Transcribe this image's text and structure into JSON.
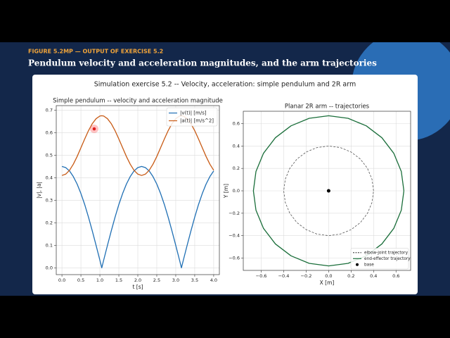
{
  "header": {
    "kicker": "FIGURE 5.2MP — OUTPUT OF EXERCISE 5.2",
    "title": "Pendulum velocity and acceleration magnitudes, and the arm trajectories"
  },
  "figure": {
    "title": "Simulation exercise 5.2 -- Velocity, acceleration: simple pendulum and 2R arm"
  },
  "chart_data": [
    {
      "type": "line",
      "title": "Simple pendulum -- velocity and acceleration magnitude",
      "x_label": "t  [s]",
      "y_label": "|v|, |a|",
      "x": [
        0,
        0.1,
        0.2,
        0.3,
        0.4,
        0.5,
        0.6,
        0.7,
        0.8,
        0.9,
        1.0,
        1.05,
        1.1,
        1.2,
        1.3,
        1.4,
        1.5,
        1.6,
        1.7,
        1.8,
        1.9,
        2.0,
        2.1,
        2.2,
        2.3,
        2.4,
        2.5,
        2.6,
        2.7,
        2.8,
        2.9,
        3.0,
        3.1,
        3.15,
        3.2,
        3.3,
        3.4,
        3.5,
        3.6,
        3.7,
        3.8,
        3.9,
        4.0
      ],
      "series": [
        {
          "name": "|v(t)|  [m/s]",
          "color": "#1f6fb4",
          "style": "solid",
          "values": [
            0.45,
            0.445,
            0.43,
            0.405,
            0.372,
            0.33,
            0.281,
            0.225,
            0.164,
            0.1,
            0.034,
            0,
            0.034,
            0.1,
            0.164,
            0.225,
            0.281,
            0.33,
            0.372,
            0.405,
            0.43,
            0.445,
            0.45,
            0.445,
            0.43,
            0.405,
            0.372,
            0.33,
            0.281,
            0.225,
            0.164,
            0.1,
            0.034,
            0,
            0.034,
            0.1,
            0.164,
            0.225,
            0.281,
            0.33,
            0.372,
            0.405,
            0.43
          ]
        },
        {
          "name": "|a(t)|  [m/s^2]",
          "color": "#c85a14",
          "style": "solid",
          "values": [
            0.41,
            0.416,
            0.433,
            0.46,
            0.494,
            0.533,
            0.572,
            0.609,
            0.64,
            0.662,
            0.674,
            0.675,
            0.674,
            0.662,
            0.64,
            0.609,
            0.572,
            0.533,
            0.494,
            0.46,
            0.433,
            0.416,
            0.41,
            0.416,
            0.433,
            0.46,
            0.494,
            0.533,
            0.572,
            0.609,
            0.64,
            0.662,
            0.674,
            0.675,
            0.674,
            0.662,
            0.64,
            0.609,
            0.572,
            0.533,
            0.494,
            0.46,
            0.433
          ]
        }
      ],
      "xlim": [
        -0.15,
        4.15
      ],
      "ylim": [
        -0.03,
        0.72
      ],
      "xticks": [
        {
          "value": 0,
          "label": "0.0"
        },
        0.5,
        {
          "value": 1,
          "label": "1.0"
        },
        1.5,
        {
          "value": 2,
          "label": "2.0"
        },
        2.5,
        {
          "value": 3,
          "label": "3.0"
        },
        3.5,
        {
          "value": 4,
          "label": "4.0"
        }
      ],
      "yticks": [
        {
          "value": 0,
          "label": "0.0"
        },
        0.1,
        0.2,
        0.3,
        0.4,
        0.5,
        0.6,
        0.7
      ],
      "grid": true,
      "legend": "upper right"
    },
    {
      "type": "line",
      "title": "Planar 2R arm -- trajectories",
      "x_label": "X [m]",
      "y_label": "Y [m]",
      "series": [
        {
          "name": "elbow-joint trajectory",
          "color": "#555555",
          "style": "dashed",
          "x": [
            0.4,
            0.386,
            0.346,
            0.283,
            0.2,
            0.104,
            0,
            -0.104,
            -0.2,
            -0.283,
            -0.346,
            -0.386,
            -0.4,
            -0.386,
            -0.346,
            -0.283,
            -0.2,
            -0.104,
            0,
            0.104,
            0.2,
            0.283,
            0.346,
            0.386,
            0.4
          ],
          "values": [
            0,
            0.104,
            0.2,
            0.283,
            0.346,
            0.386,
            0.4,
            0.386,
            0.346,
            0.283,
            0.2,
            0.104,
            0,
            -0.104,
            -0.2,
            -0.283,
            -0.346,
            -0.386,
            -0.4,
            -0.386,
            -0.346,
            -0.283,
            -0.2,
            -0.104,
            0
          ]
        },
        {
          "name": "end-effector trajectory",
          "color": "#1a6e3a",
          "style": "solid",
          "x": [
            0.67,
            0.647,
            0.58,
            0.474,
            0.335,
            0.173,
            0,
            -0.173,
            -0.335,
            -0.474,
            -0.58,
            -0.647,
            -0.67,
            -0.647,
            -0.58,
            -0.474,
            -0.335,
            -0.173,
            0,
            0.173,
            0.335,
            0.474,
            0.58,
            0.647,
            0.67
          ],
          "values": [
            0,
            0.173,
            0.335,
            0.474,
            0.58,
            0.647,
            0.67,
            0.647,
            0.58,
            0.474,
            0.335,
            0.173,
            0,
            -0.173,
            -0.335,
            -0.474,
            -0.58,
            -0.647,
            -0.67,
            -0.647,
            -0.58,
            -0.474,
            -0.335,
            -0.173,
            0
          ]
        },
        {
          "name": "base",
          "color": "#000000",
          "style": "point",
          "x": [
            0
          ],
          "values": [
            0
          ]
        }
      ],
      "xlim": [
        -0.76,
        0.73
      ],
      "ylim": [
        -0.71,
        0.71
      ],
      "xticks": [
        {
          "value": -0.6,
          "label": "−0.6"
        },
        {
          "value": -0.4,
          "label": "−0.4"
        },
        {
          "value": -0.2,
          "label": "−0.2"
        },
        {
          "value": 0,
          "label": "0.0"
        },
        0.2,
        0.4,
        0.6
      ],
      "yticks": [
        {
          "value": -0.6,
          "label": "−0.6"
        },
        {
          "value": -0.4,
          "label": "−0.4"
        },
        {
          "value": -0.2,
          "label": "−0.2"
        },
        {
          "value": 0,
          "label": "0.0"
        },
        0.2,
        0.4,
        0.6
      ],
      "grid": true,
      "legend": "lower right"
    }
  ]
}
